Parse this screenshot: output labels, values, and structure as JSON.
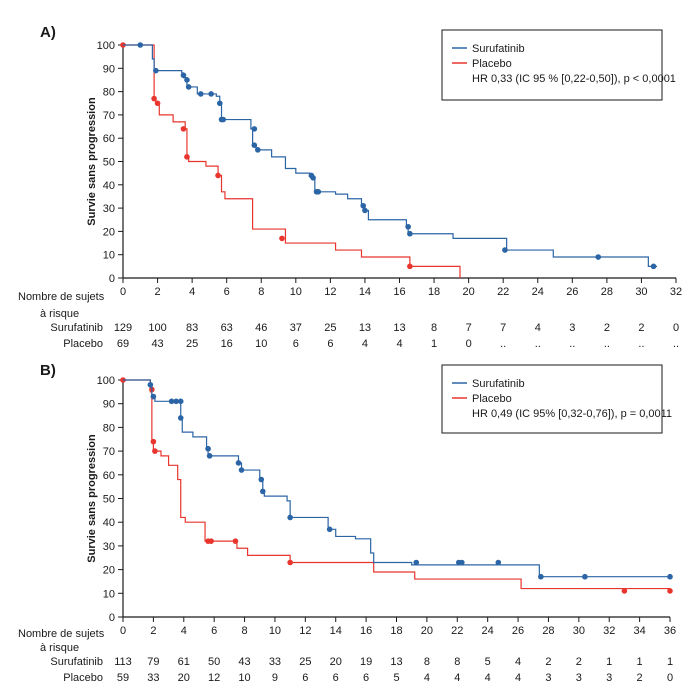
{
  "colors": {
    "surufatinib": "#2b65a5",
    "placebo": "#e8352d",
    "axis": "#1a1a1a"
  },
  "risk_header": [
    "Nombre de sujets",
    "à risque"
  ],
  "chart_data": [
    {
      "type": "line",
      "panel_label": "A)",
      "ylabel": "Survie sans progression",
      "xlim": [
        0,
        32
      ],
      "ylim": [
        0,
        100
      ],
      "x_ticks": [
        0,
        2,
        4,
        6,
        8,
        10,
        12,
        14,
        16,
        18,
        20,
        22,
        24,
        26,
        28,
        30,
        32
      ],
      "y_ticks": [
        0,
        10,
        20,
        30,
        40,
        50,
        60,
        70,
        80,
        90,
        100
      ],
      "legend_position": "top-right",
      "legend_note": "HR 0,33 (IC 95 % [0,22-0,50]), p < 0,0001",
      "series": [
        {
          "name": "Surufatinib",
          "color": "#2b65a5",
          "steps": [
            [
              0,
              100
            ],
            [
              1.7,
              94
            ],
            [
              1.8,
              89
            ],
            [
              3.4,
              88
            ],
            [
              3.5,
              86
            ],
            [
              3.7,
              82
            ],
            [
              4.3,
              79
            ],
            [
              5.4,
              78
            ],
            [
              5.6,
              75
            ],
            [
              5.7,
              68
            ],
            [
              7.4,
              64
            ],
            [
              7.5,
              57
            ],
            [
              7.7,
              55
            ],
            [
              8.6,
              52
            ],
            [
              9.4,
              47
            ],
            [
              10,
              45
            ],
            [
              10.8,
              44
            ],
            [
              10.9,
              43
            ],
            [
              11.1,
              37
            ],
            [
              12.3,
              36
            ],
            [
              13,
              34
            ],
            [
              13.8,
              31
            ],
            [
              14,
              29
            ],
            [
              14.2,
              25
            ],
            [
              16.4,
              22
            ],
            [
              16.5,
              19
            ],
            [
              19.1,
              17
            ],
            [
              22.2,
              12
            ],
            [
              24.9,
              9
            ],
            [
              30.4,
              5
            ]
          ],
          "x_end": 30.9,
          "censored": [
            [
              1,
              100
            ],
            [
              1.9,
              89
            ],
            [
              3.5,
              87
            ],
            [
              3.7,
              85
            ],
            [
              3.8,
              82
            ],
            [
              4.5,
              79
            ],
            [
              5.1,
              79
            ],
            [
              5.6,
              75
            ],
            [
              5.7,
              68
            ],
            [
              5.8,
              68
            ],
            [
              7.6,
              64
            ],
            [
              7.6,
              57
            ],
            [
              7.8,
              55
            ],
            [
              10.9,
              44
            ],
            [
              11,
              43
            ],
            [
              11.2,
              37
            ],
            [
              11.3,
              37
            ],
            [
              13.9,
              31
            ],
            [
              14,
              29
            ],
            [
              16.5,
              22
            ],
            [
              16.6,
              19
            ],
            [
              22.1,
              12
            ],
            [
              27.5,
              9
            ],
            [
              30.7,
              5
            ]
          ]
        },
        {
          "name": "Placebo",
          "color": "#e8352d",
          "steps": [
            [
              0,
              100
            ],
            [
              1.8,
              77
            ],
            [
              1.9,
              75
            ],
            [
              2.1,
              70
            ],
            [
              2.9,
              67
            ],
            [
              3.6,
              64
            ],
            [
              3.7,
              52
            ],
            [
              3.8,
              50
            ],
            [
              4.8,
              48
            ],
            [
              5.5,
              44
            ],
            [
              5.7,
              37
            ],
            [
              5.9,
              34
            ],
            [
              7.5,
              21
            ],
            [
              9.4,
              15
            ],
            [
              12.3,
              12
            ],
            [
              13.8,
              9
            ],
            [
              16.6,
              5
            ],
            [
              19.5,
              0
            ]
          ],
          "x_end": 19.5,
          "censored": [
            [
              0,
              100
            ],
            [
              1.8,
              77
            ],
            [
              2,
              75
            ],
            [
              3.5,
              64
            ],
            [
              3.7,
              52
            ],
            [
              5.5,
              44
            ],
            [
              9.2,
              17
            ],
            [
              16.6,
              5
            ]
          ]
        }
      ],
      "risk_table": {
        "times": [
          0,
          2,
          4,
          6,
          8,
          10,
          12,
          14,
          16,
          18,
          20,
          22,
          24,
          26,
          28,
          30,
          32
        ],
        "rows": [
          {
            "label": "Surufatinib",
            "values": [
              "129",
              "100",
              "83",
              "63",
              "46",
              "37",
              "25",
              "13",
              "13",
              "8",
              "7",
              "7",
              "4",
              "3",
              "2",
              "2",
              "0"
            ]
          },
          {
            "label": "Placebo",
            "values": [
              "69",
              "43",
              "25",
              "16",
              "10",
              "6",
              "6",
              "4",
              "4",
              "1",
              "0",
              "..",
              "..",
              "..",
              "..",
              "..",
              ".."
            ]
          }
        ]
      }
    },
    {
      "type": "line",
      "panel_label": "B)",
      "ylabel": "Survie sans progression",
      "xlim": [
        0,
        36
      ],
      "ylim": [
        0,
        100
      ],
      "x_ticks": [
        0,
        2,
        4,
        6,
        8,
        10,
        12,
        14,
        16,
        18,
        20,
        22,
        24,
        26,
        28,
        30,
        32,
        34,
        36
      ],
      "y_ticks": [
        0,
        10,
        20,
        30,
        40,
        50,
        60,
        70,
        80,
        90,
        100
      ],
      "legend_position": "top-right",
      "legend_note": "HR 0,49 (IC 95% [0,32-0,76]), p = 0,0011",
      "series": [
        {
          "name": "Surufatinib",
          "color": "#2b65a5",
          "steps": [
            [
              0,
              100
            ],
            [
              1.8,
              97
            ],
            [
              1.9,
              93
            ],
            [
              2.1,
              91
            ],
            [
              3.5,
              91
            ],
            [
              3.8,
              84
            ],
            [
              3.9,
              78
            ],
            [
              4.6,
              76
            ],
            [
              5.5,
              71
            ],
            [
              5.6,
              68
            ],
            [
              7.6,
              65
            ],
            [
              7.8,
              62
            ],
            [
              9,
              58
            ],
            [
              9.2,
              53
            ],
            [
              9.3,
              51
            ],
            [
              10.8,
              49
            ],
            [
              11,
              42
            ],
            [
              13.5,
              37
            ],
            [
              14,
              34
            ],
            [
              15.3,
              33
            ],
            [
              16.3,
              27
            ],
            [
              16.5,
              23
            ],
            [
              19,
              22
            ],
            [
              27.4,
              17
            ]
          ],
          "x_end": 36,
          "censored": [
            [
              1.8,
              98
            ],
            [
              2,
              93
            ],
            [
              3.2,
              91
            ],
            [
              3.5,
              91
            ],
            [
              3.8,
              91
            ],
            [
              3.8,
              84
            ],
            [
              5.6,
              71
            ],
            [
              5.7,
              68
            ],
            [
              7.6,
              65
            ],
            [
              7.8,
              62
            ],
            [
              9.1,
              58
            ],
            [
              9.2,
              53
            ],
            [
              11,
              42
            ],
            [
              13.6,
              37
            ],
            [
              19.3,
              23
            ],
            [
              22.1,
              23
            ],
            [
              22.3,
              23
            ],
            [
              24.7,
              23
            ],
            [
              27.5,
              17
            ],
            [
              30.4,
              17
            ],
            [
              36,
              17
            ]
          ]
        },
        {
          "name": "Placebo",
          "color": "#e8352d",
          "steps": [
            [
              0,
              100
            ],
            [
              1.8,
              95
            ],
            [
              1.9,
              74
            ],
            [
              2,
              70
            ],
            [
              2.5,
              68
            ],
            [
              3,
              64
            ],
            [
              3.6,
              58
            ],
            [
              3.8,
              42
            ],
            [
              4.1,
              40
            ],
            [
              5.4,
              32
            ],
            [
              7.5,
              29
            ],
            [
              8.2,
              26
            ],
            [
              11,
              23
            ],
            [
              16.5,
              19
            ],
            [
              19.2,
              16
            ],
            [
              26.2,
              12
            ]
          ],
          "x_end": 36,
          "censored": [
            [
              0,
              100
            ],
            [
              1.9,
              96
            ],
            [
              2,
              74
            ],
            [
              2.1,
              70
            ],
            [
              5.6,
              32
            ],
            [
              5.8,
              32
            ],
            [
              7.4,
              32
            ],
            [
              11,
              23
            ],
            [
              33,
              11
            ],
            [
              36,
              11
            ]
          ]
        }
      ],
      "risk_table": {
        "times": [
          0,
          2,
          4,
          6,
          8,
          10,
          12,
          14,
          16,
          18,
          20,
          22,
          24,
          26,
          28,
          30,
          32,
          34,
          36
        ],
        "rows": [
          {
            "label": "Surufatinib",
            "values": [
              "113",
              "79",
              "61",
              "50",
              "43",
              "33",
              "25",
              "20",
              "19",
              "13",
              "8",
              "8",
              "5",
              "4",
              "2",
              "2",
              "1",
              "1",
              "1"
            ]
          },
          {
            "label": "Placebo",
            "values": [
              "59",
              "33",
              "20",
              "12",
              "10",
              "9",
              "6",
              "6",
              "6",
              "5",
              "4",
              "4",
              "4",
              "4",
              "3",
              "3",
              "3",
              "2",
              "0"
            ]
          }
        ]
      }
    }
  ]
}
